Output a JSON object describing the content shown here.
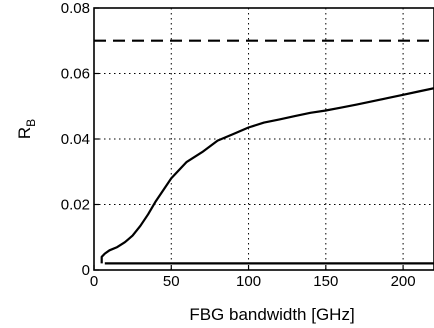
{
  "chart_data": {
    "type": "line",
    "title": "",
    "xlabel": "FBG bandwidth [GHz]",
    "ylabel_main": "R",
    "ylabel_sub": "B",
    "xlim": [
      0,
      220
    ],
    "ylim": [
      0,
      0.08
    ],
    "x_ticks": [
      0,
      50,
      100,
      150,
      200
    ],
    "y_ticks": [
      0,
      0.02,
      0.04,
      0.06,
      0.08
    ],
    "x_tick_labels": [
      "0",
      "50",
      "100",
      "150",
      "200"
    ],
    "y_tick_labels": [
      "0",
      "0.02",
      "0.04",
      "0.06",
      "0.08"
    ],
    "grid": true,
    "legend": "none",
    "series": [
      {
        "style": "solid",
        "x": [
          5,
          5,
          7,
          10,
          15,
          20,
          25,
          30,
          35,
          40,
          50,
          60,
          70,
          80,
          90,
          100,
          110,
          120,
          130,
          140,
          150,
          160,
          170,
          180,
          190,
          200,
          210,
          220
        ],
        "y": [
          0.002,
          0.004,
          0.005,
          0.006,
          0.007,
          0.0085,
          0.0105,
          0.0135,
          0.017,
          0.021,
          0.028,
          0.033,
          0.036,
          0.0395,
          0.0415,
          0.0435,
          0.045,
          0.046,
          0.047,
          0.048,
          0.0487,
          0.0496,
          0.0505,
          0.0515,
          0.0525,
          0.0535,
          0.0545,
          0.0555
        ]
      },
      {
        "style": "solid",
        "x": [
          7,
          220
        ],
        "y": [
          0.002,
          0.002
        ]
      },
      {
        "style": "dashed",
        "x": [
          0,
          220
        ],
        "y": [
          0.07,
          0.07
        ]
      }
    ]
  }
}
